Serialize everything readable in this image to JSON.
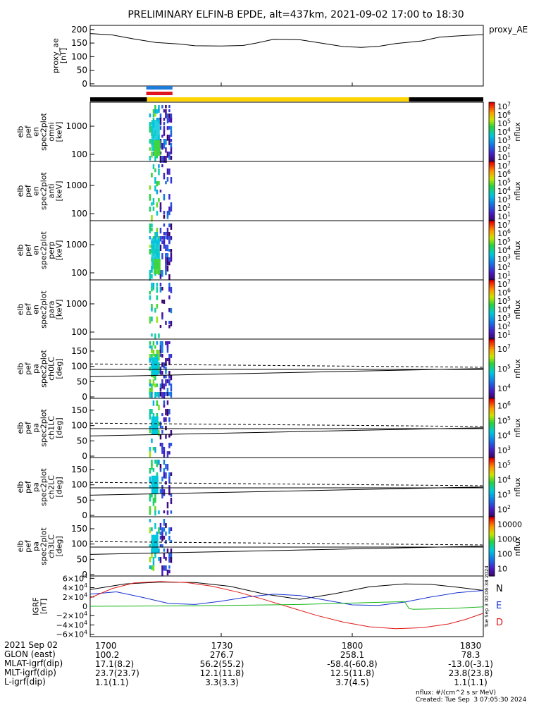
{
  "title": "PRELIMINARY ELFIN-B EPDE, alt=437km, 2021-09-02 17:00 to 18:30",
  "proxy_ae_label": "proxy_AE",
  "nflux_label": "nflux",
  "chart_data": [
    {
      "type": "line",
      "panel": "proxy_ae",
      "ylabel": [
        "proxy_ae",
        "[nT]"
      ],
      "yticks": [
        "200",
        "150",
        "100",
        "50",
        "0"
      ],
      "ylim": [
        -8,
        215
      ],
      "x_minutes": [
        0,
        5,
        10,
        15,
        20,
        24,
        30,
        35,
        38,
        42,
        48,
        52,
        58,
        62,
        66,
        70,
        76,
        80,
        86,
        90
      ],
      "values": [
        185,
        180,
        165,
        152,
        147,
        140,
        139,
        141,
        150,
        164,
        162,
        152,
        137,
        134,
        138,
        148,
        158,
        172,
        178,
        181
      ],
      "series_label": "proxy_AE"
    },
    {
      "type": "bar",
      "panel": "status_bars",
      "segments": [
        {
          "name": "track-black-start",
          "color": "#000000",
          "start_min": 0,
          "end_min": 13
        },
        {
          "name": "track-yellow",
          "color": "#ffd400",
          "start_min": 13,
          "end_min": 73
        },
        {
          "name": "track-black-end",
          "color": "#000000",
          "start_min": 73,
          "end_min": 90
        }
      ],
      "markers": [
        {
          "name": "blue-marker",
          "color": "#1e7bd9",
          "start_min": 13,
          "end_min": 19
        },
        {
          "name": "red-marker",
          "color": "#e0141e",
          "start_min": 13,
          "end_min": 19
        }
      ]
    },
    {
      "type": "heatmap",
      "panel": "spectrogram",
      "rows": [
        {
          "name": "omni",
          "ylabel": [
            "elb",
            "pef",
            "en",
            "spec2plot",
            "omni",
            "[keV]"
          ],
          "yticks": [
            "1000",
            "100"
          ],
          "cbar_ticks": [
            "10^7",
            "10^6",
            "10^5",
            "10^4",
            "10^3",
            "10^2",
            "10^1"
          ]
        },
        {
          "name": "anti",
          "ylabel": [
            "elb",
            "pef",
            "en",
            "spec2plot",
            "anti",
            "[keV]"
          ],
          "yticks": [
            "1000",
            "100"
          ],
          "cbar_ticks": [
            "10^7",
            "10^6",
            "10^5",
            "10^4",
            "10^3",
            "10^2",
            "10^1"
          ]
        },
        {
          "name": "perp",
          "ylabel": [
            "elb",
            "pef",
            "en",
            "spec2plot",
            "perp",
            "[keV]"
          ],
          "yticks": [
            "1000",
            "100"
          ],
          "cbar_ticks": [
            "10^7",
            "10^6",
            "10^5",
            "10^4",
            "10^3",
            "10^2",
            "10^1"
          ]
        },
        {
          "name": "para",
          "ylabel": [
            "elb",
            "pef",
            "en",
            "spec2plot",
            "para",
            "[keV]"
          ],
          "yticks": [
            "1000",
            "100"
          ],
          "cbar_ticks": [
            "10^7",
            "10^6",
            "10^5",
            "10^4",
            "10^3",
            "10^2",
            "10^1"
          ]
        }
      ]
    },
    {
      "type": "heatmap",
      "panel": "pitch_angle",
      "rows": [
        {
          "name": "ch0LC",
          "ylabel": [
            "elb",
            "pef",
            "pa",
            "spec2plot",
            "ch0LC",
            "[deg]"
          ],
          "yticks": [
            "150",
            "100",
            "50",
            "0"
          ],
          "cbar_ticks": [
            "10^7",
            "10^5",
            "10^4"
          ]
        },
        {
          "name": "ch1LC",
          "ylabel": [
            "elb",
            "pef",
            "pa",
            "spec2plot",
            "ch1LC",
            "[deg]"
          ],
          "yticks": [
            "150",
            "100",
            "50",
            "0"
          ],
          "cbar_ticks": [
            "10^6",
            "10^5",
            "10^4",
            "10^3"
          ]
        },
        {
          "name": "ch2LC",
          "ylabel": [
            "elb",
            "pef",
            "pa",
            "spec2plot",
            "ch2LC",
            "[deg]"
          ],
          "yticks": [
            "150",
            "100",
            "50",
            "0"
          ],
          "cbar_ticks": [
            "10^5",
            "10^4",
            "10^3",
            "10^2"
          ]
        },
        {
          "name": "ch3LC",
          "ylabel": [
            "elb",
            "pef",
            "pa",
            "spec2plot",
            "ch3LC",
            "[deg]"
          ],
          "yticks": [
            "150",
            "100",
            "50",
            "0"
          ],
          "cbar_ticks": [
            "10000",
            "1000",
            "100",
            "10"
          ]
        }
      ]
    },
    {
      "type": "line",
      "panel": "igrf",
      "ylabel": [
        "IGRF",
        "[nT]"
      ],
      "yticks": [
        "6×10^4",
        "4×10^4",
        "2×10^4",
        "0",
        "−2×10^4",
        "−4×10^4",
        "−6×10^4"
      ],
      "ylim": [
        -65000,
        65000
      ],
      "series": [
        {
          "name": "N",
          "color": "#000000",
          "x_minutes": [
            0,
            8,
            16,
            24,
            32,
            40,
            48,
            56,
            64,
            72,
            78,
            84,
            90
          ],
          "values": [
            36000,
            48000,
            52000,
            51000,
            43000,
            26000,
            15000,
            27000,
            42000,
            48000,
            47000,
            41000,
            34000
          ]
        },
        {
          "name": "E",
          "color": "#1530d0",
          "x_minutes": [
            0,
            6,
            12,
            18,
            24,
            30,
            36,
            42,
            48,
            54,
            60,
            66,
            72,
            78,
            84,
            90
          ],
          "values": [
            26000,
            31000,
            19000,
            6000,
            4000,
            11000,
            20000,
            26000,
            23000,
            13000,
            3000,
            2000,
            9000,
            20000,
            29000,
            34000
          ]
        },
        {
          "name": "D",
          "color": "#e01818",
          "x_minutes": [
            0,
            5,
            10,
            16,
            22,
            28,
            34,
            40,
            46,
            52,
            58,
            64,
            70,
            76,
            82,
            86,
            90
          ],
          "values": [
            18000,
            38000,
            50000,
            53000,
            51000,
            43000,
            30000,
            14000,
            -3000,
            -20000,
            -34000,
            -44000,
            -48000,
            -46000,
            -38000,
            -28000,
            -15000
          ]
        },
        {
          "name": "green",
          "color": "#18b818",
          "x_minutes": [
            0,
            24,
            48,
            72,
            73,
            74,
            82,
            90
          ],
          "values": [
            0,
            1000,
            4000,
            10000,
            -5000,
            -6500,
            -5000,
            -1000
          ]
        }
      ],
      "legend": [
        "N",
        "E",
        "D"
      ],
      "side_text": "Tue Sep  3 00:06:38 2024"
    }
  ],
  "footer": {
    "rows": [
      {
        "label": "2021 Sep 02",
        "values": [
          "1700",
          "1730",
          "1800",
          "1830"
        ]
      },
      {
        "label": "GLON (east)",
        "values": [
          "100.2",
          "276.7",
          "258.1",
          "78.3"
        ]
      },
      {
        "label": "MLAT-igrf(dip)",
        "values": [
          "17.1(8.2)",
          "56.2(55.2)",
          "-58.4(-60.8)",
          "-13.0(-3.1)"
        ]
      },
      {
        "label": "MLT-igrf(dip)",
        "values": [
          "23.7(23.7)",
          "12.1(11.8)",
          "12.5(11.8)",
          "23.8(23.8)"
        ]
      },
      {
        "label": "L-igrf(dip)",
        "values": [
          "1.1(1.1)",
          "3.3(3.3)",
          "3.7(4.5)",
          "1.1(1.1)"
        ]
      }
    ],
    "nflux_units": "nflux: #/(cm^2 s sr MeV)",
    "created": "Created: Tue Sep  3 07:05:30 2024"
  }
}
